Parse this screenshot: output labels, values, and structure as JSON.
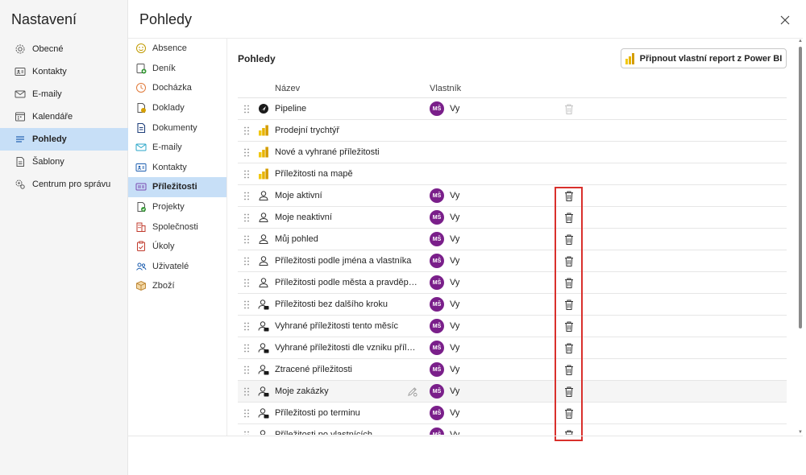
{
  "settings": {
    "title": "Nastavení",
    "items": [
      {
        "label": "Obecné",
        "icon": "gear-icon",
        "active": false
      },
      {
        "label": "Kontakty",
        "icon": "contact-card-icon",
        "active": false
      },
      {
        "label": "E-maily",
        "icon": "mail-icon",
        "active": false
      },
      {
        "label": "Kalendáře",
        "icon": "calendar-icon",
        "active": false
      },
      {
        "label": "Pohledy",
        "icon": "list-icon",
        "active": true
      },
      {
        "label": "Šablony",
        "icon": "template-icon",
        "active": false
      },
      {
        "label": "Centrum pro správu",
        "icon": "admin-gear-icon",
        "active": false
      }
    ]
  },
  "page": {
    "title": "Pohledy"
  },
  "entities": {
    "items": [
      {
        "label": "Absence",
        "icon": "smiley-icon",
        "color": "#c09a00",
        "active": false
      },
      {
        "label": "Deník",
        "icon": "journal-icon",
        "color": "#3a9a3a",
        "active": false
      },
      {
        "label": "Docházka",
        "icon": "clock-icon",
        "color": "#e07a3a",
        "active": false
      },
      {
        "label": "Doklady",
        "icon": "receipt-icon",
        "color": "#d6a000",
        "active": false
      },
      {
        "label": "Dokumenty",
        "icon": "document-icon",
        "color": "#1f3f7a",
        "active": false
      },
      {
        "label": "E-maily",
        "icon": "mail-icon",
        "color": "#2aa6c8",
        "active": false
      },
      {
        "label": "Kontakty",
        "icon": "contact-card-icon",
        "color": "#1f5fb0",
        "active": false
      },
      {
        "label": "Příležitosti",
        "icon": "opportunity-icon",
        "color": "#7a4ab0",
        "active": true
      },
      {
        "label": "Projekty",
        "icon": "project-icon",
        "color": "#3a9a3a",
        "active": false
      },
      {
        "label": "Společnosti",
        "icon": "building-icon",
        "color": "#c0392b",
        "active": false
      },
      {
        "label": "Úkoly",
        "icon": "task-icon",
        "color": "#c0392b",
        "active": false
      },
      {
        "label": "Uživatelé",
        "icon": "users-icon",
        "color": "#1f5fb0",
        "active": false
      },
      {
        "label": "Zboží",
        "icon": "box-icon",
        "color": "#c08a3a",
        "active": false
      }
    ]
  },
  "section": {
    "title": "Pohledy",
    "powerbi_button": "Připnout vlastní report z Power BI"
  },
  "table": {
    "col_name": "Název",
    "col_owner": "Vlastník",
    "rows": [
      {
        "name": "Pipeline",
        "icon": "pipeline-icon",
        "initials": "MŠ",
        "owner": "Vy",
        "trash": "disabled"
      },
      {
        "name": "Prodejní trychtýř",
        "icon": "powerbi-icon",
        "initials": "",
        "owner": "",
        "trash": "none"
      },
      {
        "name": "Nové a vyhrané příležitosti",
        "icon": "powerbi-icon",
        "initials": "",
        "owner": "",
        "trash": "none"
      },
      {
        "name": "Příležitosti na mapě",
        "icon": "powerbi-icon",
        "initials": "",
        "owner": "",
        "trash": "none"
      },
      {
        "name": "Moje aktivní",
        "icon": "person-icon",
        "initials": "MŠ",
        "owner": "Vy",
        "trash": "active"
      },
      {
        "name": "Moje neaktivní",
        "icon": "person-icon",
        "initials": "MŠ",
        "owner": "Vy",
        "trash": "active"
      },
      {
        "name": "Můj pohled",
        "icon": "person-icon",
        "initials": "MŠ",
        "owner": "Vy",
        "trash": "active"
      },
      {
        "name": "Příležitosti podle jména a vlastníka",
        "icon": "person-icon",
        "initials": "MŠ",
        "owner": "Vy",
        "trash": "active"
      },
      {
        "name": "Příležitosti podle města a pravděpodobnosti",
        "icon": "person-icon",
        "initials": "MŠ",
        "owner": "Vy",
        "trash": "active"
      },
      {
        "name": "Příležitosti bez dalšího kroku",
        "icon": "person-shared-icon",
        "initials": "MŠ",
        "owner": "Vy",
        "trash": "active"
      },
      {
        "name": "Vyhrané příležitosti tento měsíc",
        "icon": "person-shared-icon",
        "initials": "MŠ",
        "owner": "Vy",
        "trash": "active"
      },
      {
        "name": "Vyhrané příležitosti dle vzniku příležitosti",
        "icon": "person-shared-icon",
        "initials": "MŠ",
        "owner": "Vy",
        "trash": "active"
      },
      {
        "name": "Ztracené příležitosti",
        "icon": "person-shared-icon",
        "initials": "MŠ",
        "owner": "Vy",
        "trash": "active"
      },
      {
        "name": "Moje zakázky",
        "icon": "person-shared-icon",
        "initials": "MŠ",
        "owner": "Vy",
        "trash": "active",
        "hover": true
      },
      {
        "name": "Příležitosti po terminu",
        "icon": "person-shared-icon",
        "initials": "MŠ",
        "owner": "Vy",
        "trash": "active"
      },
      {
        "name": "Příležitosti po vlastnících",
        "icon": "person-shared-icon",
        "initials": "MŠ",
        "owner": "Vy",
        "trash": "active"
      }
    ]
  },
  "colors": {
    "accent_selected": "#c7dff7",
    "avatar": "#7a1f8a",
    "highlight": "#d9302c",
    "powerbi": "#f2c811"
  }
}
